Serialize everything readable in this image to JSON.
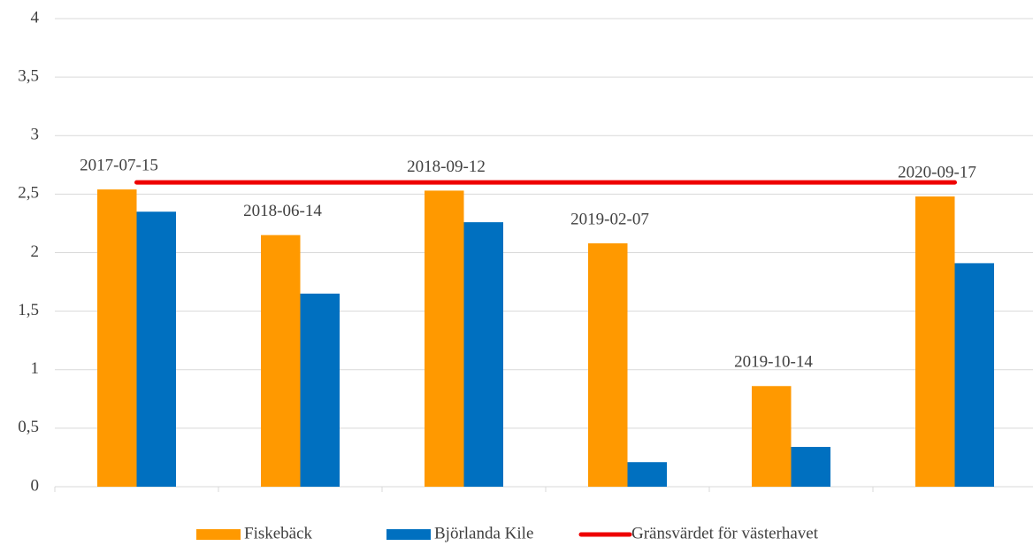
{
  "chart_data": {
    "type": "bar",
    "categories": [
      "2017-07-15",
      "2018-06-14",
      "2018-09-12",
      "2019-02-07",
      "2019-10-14",
      "2020-09-17"
    ],
    "series": [
      {
        "name": "Fiskebäck",
        "color": "#ff9900",
        "values": [
          2.54,
          2.15,
          2.53,
          2.08,
          0.86,
          2.48
        ]
      },
      {
        "name": "Björlanda Kile",
        "color": "#0070c0",
        "values": [
          2.35,
          1.65,
          2.26,
          0.21,
          0.34,
          1.91
        ]
      },
      {
        "name": "Gränsvärdet för västerhavet",
        "color": "#ee0000",
        "type": "line",
        "values": [
          2.6,
          2.6,
          2.6,
          2.6,
          2.6,
          2.6
        ]
      }
    ],
    "ylim": [
      0,
      4
    ],
    "yticks": [
      0,
      {
        "value": 0.5,
        "label": "0,5"
      },
      1,
      {
        "value": 1.5,
        "label": "1,5"
      },
      2,
      {
        "value": 2.5,
        "label": "2,5"
      },
      3,
      {
        "value": 3.5,
        "label": "3,5"
      },
      4
    ],
    "grid": true,
    "legend": "bottom"
  }
}
